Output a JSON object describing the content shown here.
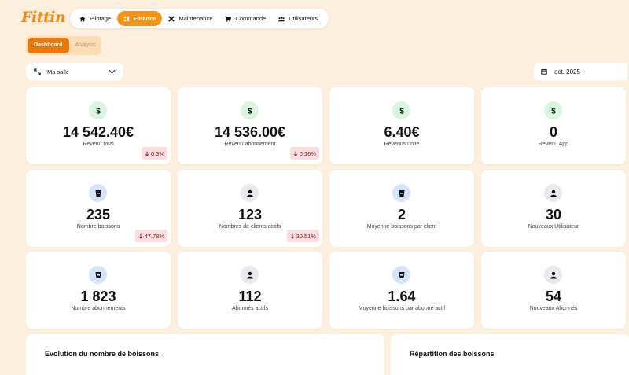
{
  "app": {
    "logo": "Fittin"
  },
  "nav": {
    "items": [
      {
        "label": "Pilotage",
        "icon": "home-icon",
        "active": false
      },
      {
        "label": "Finance",
        "icon": "finance-icon",
        "active": true
      },
      {
        "label": "Maintenance",
        "icon": "tools-icon",
        "active": false
      },
      {
        "label": "Commande",
        "icon": "cart-icon",
        "active": false
      },
      {
        "label": "Utilisateurs",
        "icon": "users-icon",
        "active": false
      }
    ]
  },
  "subtabs": [
    {
      "label": "Dashboard",
      "active": true
    },
    {
      "label": "Analysis",
      "active": false
    }
  ],
  "filters": {
    "salle": "Ma salle",
    "date": "oct. 2025 -"
  },
  "cards": [
    {
      "value": "14 542.40€",
      "label": "Revenu total",
      "icon": "dollar-icon",
      "icon_bg": "green",
      "badge": "0.3%"
    },
    {
      "value": "14 536.00€",
      "label": "Revenu abonnement",
      "icon": "dollar-icon",
      "icon_bg": "green",
      "badge": "0.16%"
    },
    {
      "value": "6.40€",
      "label": "Revenus unité",
      "icon": "dollar-icon",
      "icon_bg": "green",
      "badge": null
    },
    {
      "value": "0",
      "label": "Revenu App",
      "icon": "dollar-icon",
      "icon_bg": "green",
      "badge": null
    },
    {
      "value": "235",
      "label": "Nombre boissons",
      "icon": "cup-icon",
      "icon_bg": "blue",
      "badge": "47.78%"
    },
    {
      "value": "123",
      "label": "Nombres de clients actifs",
      "icon": "user-icon",
      "icon_bg": "gray",
      "badge": "30.51%"
    },
    {
      "value": "2",
      "label": "Moyenne boissons par client",
      "icon": "cup-icon",
      "icon_bg": "blue",
      "badge": null
    },
    {
      "value": "30",
      "label": "Nouveaux Utilisateur",
      "icon": "user-icon",
      "icon_bg": "gray",
      "badge": null
    },
    {
      "value": "1 823",
      "label": "Nombre abonnements",
      "icon": "cup-icon",
      "icon_bg": "blue",
      "badge": null
    },
    {
      "value": "112",
      "label": "Abonnés actifs",
      "icon": "user-icon",
      "icon_bg": "gray",
      "badge": null
    },
    {
      "value": "1.64",
      "label": "Moyenne boissons par abonné actif",
      "icon": "cup-icon",
      "icon_bg": "blue",
      "badge": null
    },
    {
      "value": "54",
      "label": "Nouveaux Abonnés",
      "icon": "user-icon",
      "icon_bg": "gray",
      "badge": null
    }
  ],
  "panels": {
    "evolution_title": "Evolution du nombre de boissons",
    "repartition_title": "Répartition des boissons"
  },
  "colors": {
    "background": "#fcefde",
    "accent": "#f59412",
    "badge_bg": "#fbdde0",
    "badge_text": "#7b1d22"
  }
}
